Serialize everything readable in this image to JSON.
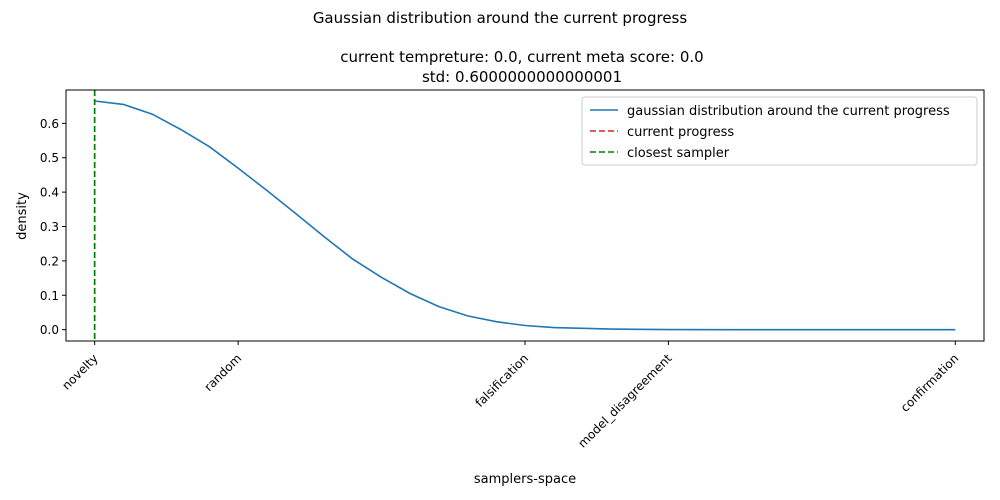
{
  "chart_data": {
    "type": "line",
    "suptitle": "Gaussian distribution around the current progress",
    "title_lines": [
      "current tempreture: 0.0, current meta score: 0.0",
      "std: 0.6000000000000001"
    ],
    "xlabel": "samplers-space",
    "ylabel": "density",
    "xlim": [
      -0.1,
      3.1
    ],
    "ylim": [
      -0.033,
      0.697
    ],
    "x_ticks": [
      {
        "value": 0.0,
        "label": "novelty"
      },
      {
        "value": 0.5,
        "label": "random"
      },
      {
        "value": 1.5,
        "label": "falsification"
      },
      {
        "value": 2.0,
        "label": "model_disagreement"
      },
      {
        "value": 3.0,
        "label": "confirmation"
      }
    ],
    "y_ticks": [
      {
        "value": 0.0,
        "label": "0.0"
      },
      {
        "value": 0.1,
        "label": "0.1"
      },
      {
        "value": 0.2,
        "label": "0.2"
      },
      {
        "value": 0.3,
        "label": "0.3"
      },
      {
        "value": 0.4,
        "label": "0.4"
      },
      {
        "value": 0.5,
        "label": "0.5"
      },
      {
        "value": 0.6,
        "label": "0.6"
      }
    ],
    "series": [
      {
        "name": "gaussian distribution around the current progress",
        "color": "#1f77b4",
        "style": "solid",
        "x": [
          0.0,
          0.1,
          0.2,
          0.3,
          0.4,
          0.5,
          0.6,
          0.7,
          0.8,
          0.9,
          1.0,
          1.1,
          1.2,
          1.3,
          1.4,
          1.5,
          1.6,
          1.8,
          2.0,
          2.2,
          2.4,
          2.6,
          2.8,
          3.0
        ],
        "y": [
          0.665,
          0.655,
          0.627,
          0.582,
          0.532,
          0.47,
          0.405,
          0.338,
          0.27,
          0.205,
          0.152,
          0.105,
          0.067,
          0.04,
          0.023,
          0.012,
          0.006,
          0.0015,
          0.0003,
          0.0,
          0.0,
          0.0,
          0.0,
          0.0
        ]
      },
      {
        "name": "current progress",
        "color": "#d62728",
        "style": "dashed",
        "x_value": 0.0
      },
      {
        "name": "closest sampler",
        "color": "#008000",
        "style": "dashed",
        "x_value": 0.0
      }
    ],
    "legend_position": "top-right",
    "grid": false
  }
}
